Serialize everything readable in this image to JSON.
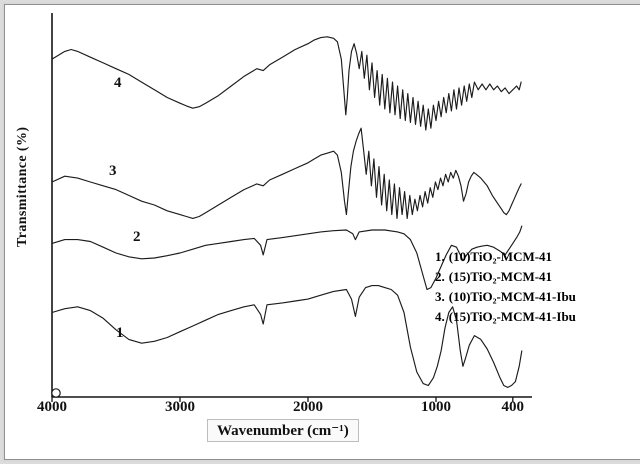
{
  "figure": {
    "xlabel": "Wavenumber (cm⁻¹)",
    "ylabel": "Transmittance (%)"
  },
  "curve_labels": [
    "1",
    "2",
    "3",
    "4"
  ],
  "legend": {
    "items": [
      {
        "num": "1.",
        "label": "(10)TiO₂-MCM-41"
      },
      {
        "num": "2.",
        "label": "(15)TiO₂-MCM-41"
      },
      {
        "num": "3.",
        "label": "(10)TiO₂-MCM-41-Ibu"
      },
      {
        "num": "4.",
        "label": "(15)TiO₂-MCM-41-Ibu"
      }
    ]
  },
  "chart_data": {
    "type": "line",
    "xlabel": "Wavenumber (cm⁻¹)",
    "ylabel": "Transmittance (%)",
    "x_ticks": [
      4000,
      3000,
      2000,
      1000,
      400
    ],
    "x_range": [
      4000,
      250
    ],
    "x_reversed": true,
    "y_units": "arbitrary offset units 0-100 (y axis unlabeled, stacked spectra)",
    "legend_position": "right-middle",
    "series": [
      {
        "name": "(10)TiO₂-MCM-41",
        "curve_label": "1",
        "points": [
          [
            4000,
            22
          ],
          [
            3900,
            23
          ],
          [
            3800,
            23.5
          ],
          [
            3700,
            22.5
          ],
          [
            3600,
            20.5
          ],
          [
            3500,
            17.5
          ],
          [
            3400,
            15
          ],
          [
            3300,
            14
          ],
          [
            3200,
            14.5
          ],
          [
            3100,
            15.5
          ],
          [
            3000,
            17
          ],
          [
            2900,
            18.5
          ],
          [
            2800,
            20
          ],
          [
            2700,
            21.5
          ],
          [
            2600,
            22.5
          ],
          [
            2500,
            23.5
          ],
          [
            2420,
            24
          ],
          [
            2370,
            21.5
          ],
          [
            2350,
            19
          ],
          [
            2320,
            24
          ],
          [
            2200,
            24.5
          ],
          [
            2100,
            25
          ],
          [
            2000,
            25.5
          ],
          [
            1900,
            26.5
          ],
          [
            1800,
            27.5
          ],
          [
            1700,
            28
          ],
          [
            1660,
            25.5
          ],
          [
            1630,
            21
          ],
          [
            1600,
            26
          ],
          [
            1550,
            28.5
          ],
          [
            1500,
            29
          ],
          [
            1450,
            29
          ],
          [
            1400,
            28.5
          ],
          [
            1350,
            28
          ],
          [
            1300,
            26.5
          ],
          [
            1250,
            22
          ],
          [
            1200,
            13
          ],
          [
            1150,
            6.5
          ],
          [
            1100,
            3.5
          ],
          [
            1060,
            3
          ],
          [
            1020,
            5
          ],
          [
            990,
            8
          ],
          [
            960,
            12
          ],
          [
            930,
            18
          ],
          [
            900,
            22
          ],
          [
            870,
            23.5
          ],
          [
            840,
            20
          ],
          [
            810,
            12
          ],
          [
            790,
            8
          ],
          [
            770,
            10
          ],
          [
            740,
            13.5
          ],
          [
            700,
            16
          ],
          [
            650,
            15
          ],
          [
            600,
            12.5
          ],
          [
            550,
            9
          ],
          [
            500,
            5
          ],
          [
            470,
            3
          ],
          [
            440,
            2.5
          ],
          [
            410,
            3
          ],
          [
            380,
            4
          ],
          [
            350,
            8
          ],
          [
            330,
            12
          ]
        ]
      },
      {
        "name": "(15)TiO₂-MCM-41",
        "curve_label": "2",
        "points": [
          [
            4000,
            40
          ],
          [
            3900,
            41
          ],
          [
            3800,
            41
          ],
          [
            3700,
            40.5
          ],
          [
            3600,
            39
          ],
          [
            3500,
            37.5
          ],
          [
            3400,
            36.5
          ],
          [
            3300,
            36
          ],
          [
            3200,
            36.2
          ],
          [
            3100,
            36.8
          ],
          [
            3000,
            37.5
          ],
          [
            2900,
            38.5
          ],
          [
            2800,
            39.5
          ],
          [
            2700,
            40
          ],
          [
            2600,
            40.5
          ],
          [
            2500,
            41
          ],
          [
            2420,
            41.3
          ],
          [
            2370,
            39.5
          ],
          [
            2350,
            37
          ],
          [
            2320,
            41
          ],
          [
            2200,
            41.5
          ],
          [
            2100,
            42
          ],
          [
            2000,
            42.5
          ],
          [
            1900,
            43
          ],
          [
            1800,
            43.3
          ],
          [
            1700,
            43.5
          ],
          [
            1650,
            42.5
          ],
          [
            1630,
            41
          ],
          [
            1600,
            43
          ],
          [
            1500,
            43.5
          ],
          [
            1400,
            43.5
          ],
          [
            1300,
            43
          ],
          [
            1250,
            42.5
          ],
          [
            1200,
            41
          ],
          [
            1150,
            37.5
          ],
          [
            1100,
            31.5
          ],
          [
            1070,
            28
          ],
          [
            1040,
            28.5
          ],
          [
            1000,
            31
          ],
          [
            960,
            34
          ],
          [
            920,
            37
          ],
          [
            880,
            39.5
          ],
          [
            840,
            39
          ],
          [
            810,
            37
          ],
          [
            790,
            35.5
          ],
          [
            760,
            37
          ],
          [
            720,
            38.5
          ],
          [
            680,
            39
          ],
          [
            640,
            39.3
          ],
          [
            600,
            39.5
          ],
          [
            550,
            39
          ],
          [
            500,
            38
          ],
          [
            460,
            37
          ],
          [
            430,
            38.5
          ],
          [
            400,
            40
          ],
          [
            370,
            41.5
          ],
          [
            345,
            43
          ],
          [
            330,
            44.5
          ]
        ]
      },
      {
        "name": "(10)TiO₂-MCM-41-Ibu",
        "curve_label": "3",
        "points": [
          [
            4000,
            56
          ],
          [
            3900,
            57.5
          ],
          [
            3800,
            57
          ],
          [
            3700,
            56
          ],
          [
            3600,
            55
          ],
          [
            3500,
            54
          ],
          [
            3400,
            52.5
          ],
          [
            3300,
            51
          ],
          [
            3200,
            50
          ],
          [
            3100,
            48.5
          ],
          [
            3000,
            47.5
          ],
          [
            2950,
            47
          ],
          [
            2900,
            46.5
          ],
          [
            2850,
            47
          ],
          [
            2800,
            48
          ],
          [
            2700,
            50
          ],
          [
            2600,
            52
          ],
          [
            2500,
            54
          ],
          [
            2400,
            55.5
          ],
          [
            2350,
            55
          ],
          [
            2300,
            56.5
          ],
          [
            2200,
            58
          ],
          [
            2100,
            59.5
          ],
          [
            2000,
            61
          ],
          [
            1950,
            62
          ],
          [
            1900,
            63
          ],
          [
            1850,
            63.5
          ],
          [
            1800,
            64
          ],
          [
            1770,
            63
          ],
          [
            1740,
            58.5
          ],
          [
            1715,
            51
          ],
          [
            1700,
            47.5
          ],
          [
            1685,
            53
          ],
          [
            1665,
            60
          ],
          [
            1645,
            64
          ],
          [
            1625,
            66.5
          ],
          [
            1605,
            68.5
          ],
          [
            1585,
            70
          ],
          [
            1565,
            64
          ],
          [
            1545,
            58
          ],
          [
            1525,
            64
          ],
          [
            1505,
            55
          ],
          [
            1485,
            62
          ],
          [
            1465,
            52
          ],
          [
            1445,
            60
          ],
          [
            1425,
            50
          ],
          [
            1405,
            58
          ],
          [
            1385,
            48.5
          ],
          [
            1365,
            56.5
          ],
          [
            1345,
            47.5
          ],
          [
            1325,
            55.5
          ],
          [
            1305,
            46.5
          ],
          [
            1285,
            54.5
          ],
          [
            1265,
            47.5
          ],
          [
            1245,
            53.5
          ],
          [
            1225,
            46.5
          ],
          [
            1205,
            52.5
          ],
          [
            1185,
            47.5
          ],
          [
            1165,
            51.5
          ],
          [
            1145,
            48.5
          ],
          [
            1125,
            52.5
          ],
          [
            1105,
            49.5
          ],
          [
            1085,
            53.5
          ],
          [
            1065,
            50.5
          ],
          [
            1045,
            54.5
          ],
          [
            1025,
            52
          ],
          [
            1005,
            56
          ],
          [
            985,
            54
          ],
          [
            965,
            57
          ],
          [
            945,
            55
          ],
          [
            925,
            58
          ],
          [
            905,
            56
          ],
          [
            885,
            58.5
          ],
          [
            865,
            57
          ],
          [
            845,
            59
          ],
          [
            825,
            57.5
          ],
          [
            805,
            55
          ],
          [
            785,
            51
          ],
          [
            765,
            53
          ],
          [
            745,
            56
          ],
          [
            725,
            57.5
          ],
          [
            705,
            58.5
          ],
          [
            685,
            58
          ],
          [
            650,
            57
          ],
          [
            600,
            55
          ],
          [
            560,
            52.5
          ],
          [
            520,
            50.5
          ],
          [
            490,
            49
          ],
          [
            470,
            48
          ],
          [
            450,
            47.5
          ],
          [
            430,
            48.5
          ],
          [
            410,
            50
          ],
          [
            390,
            51.5
          ],
          [
            370,
            53
          ],
          [
            350,
            54.5
          ],
          [
            335,
            55.5
          ]
        ]
      },
      {
        "name": "(15)TiO₂-MCM-41-Ibu",
        "curve_label": "4",
        "points": [
          [
            4000,
            88
          ],
          [
            3950,
            89
          ],
          [
            3900,
            90
          ],
          [
            3850,
            90.5
          ],
          [
            3800,
            90
          ],
          [
            3700,
            88.5
          ],
          [
            3600,
            87
          ],
          [
            3500,
            85.5
          ],
          [
            3400,
            84
          ],
          [
            3300,
            82
          ],
          [
            3200,
            80
          ],
          [
            3100,
            78
          ],
          [
            3000,
            76.5
          ],
          [
            2950,
            75.8
          ],
          [
            2900,
            75.2
          ],
          [
            2850,
            75.6
          ],
          [
            2800,
            76.5
          ],
          [
            2700,
            78.5
          ],
          [
            2600,
            81
          ],
          [
            2500,
            83.5
          ],
          [
            2400,
            85.5
          ],
          [
            2350,
            85
          ],
          [
            2300,
            86.5
          ],
          [
            2200,
            88.5
          ],
          [
            2100,
            90.5
          ],
          [
            2000,
            92
          ],
          [
            1950,
            93
          ],
          [
            1900,
            93.6
          ],
          [
            1850,
            93.8
          ],
          [
            1800,
            93.4
          ],
          [
            1770,
            92.5
          ],
          [
            1740,
            88
          ],
          [
            1720,
            80
          ],
          [
            1705,
            73.5
          ],
          [
            1693,
            78
          ],
          [
            1680,
            85
          ],
          [
            1660,
            90
          ],
          [
            1640,
            92
          ],
          [
            1620,
            89.5
          ],
          [
            1600,
            85.5
          ],
          [
            1580,
            90
          ],
          [
            1560,
            83
          ],
          [
            1540,
            89
          ],
          [
            1520,
            80
          ],
          [
            1500,
            87
          ],
          [
            1480,
            78
          ],
          [
            1460,
            85
          ],
          [
            1440,
            76
          ],
          [
            1420,
            84
          ],
          [
            1400,
            75
          ],
          [
            1380,
            83
          ],
          [
            1360,
            74
          ],
          [
            1340,
            82
          ],
          [
            1320,
            73.5
          ],
          [
            1300,
            81
          ],
          [
            1280,
            72.5
          ],
          [
            1260,
            80
          ],
          [
            1240,
            72
          ],
          [
            1220,
            79
          ],
          [
            1200,
            71.5
          ],
          [
            1180,
            78
          ],
          [
            1160,
            71
          ],
          [
            1140,
            77
          ],
          [
            1120,
            70.5
          ],
          [
            1100,
            76
          ],
          [
            1080,
            69.5
          ],
          [
            1060,
            75
          ],
          [
            1040,
            70
          ],
          [
            1020,
            76
          ],
          [
            1000,
            72
          ],
          [
            980,
            77
          ],
          [
            960,
            73
          ],
          [
            940,
            78
          ],
          [
            920,
            74
          ],
          [
            900,
            79
          ],
          [
            880,
            74.5
          ],
          [
            860,
            80
          ],
          [
            840,
            75
          ],
          [
            820,
            80.5
          ],
          [
            800,
            76
          ],
          [
            780,
            81
          ],
          [
            760,
            77
          ],
          [
            740,
            81.5
          ],
          [
            720,
            78
          ],
          [
            700,
            82
          ],
          [
            670,
            80
          ],
          [
            640,
            81.5
          ],
          [
            610,
            80
          ],
          [
            580,
            81.5
          ],
          [
            550,
            80
          ],
          [
            520,
            81
          ],
          [
            490,
            79.5
          ],
          [
            460,
            80.5
          ],
          [
            430,
            79
          ],
          [
            400,
            80
          ],
          [
            370,
            81
          ],
          [
            350,
            80
          ],
          [
            335,
            82
          ]
        ]
      }
    ]
  }
}
